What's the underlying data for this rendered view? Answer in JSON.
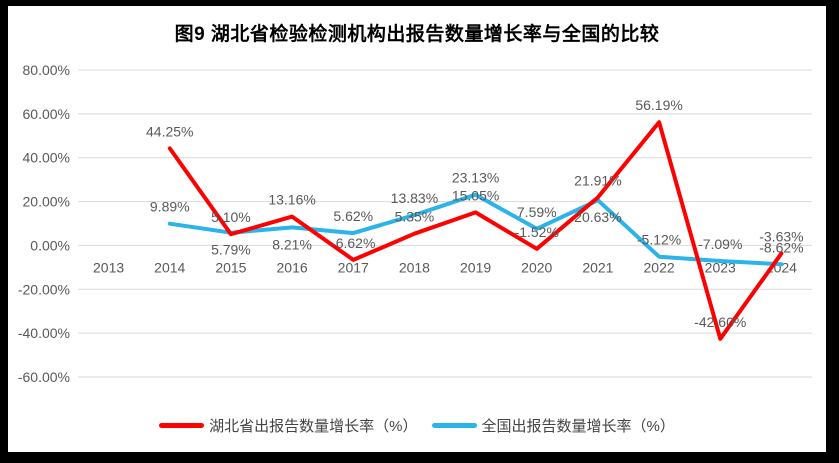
{
  "chart_data": {
    "type": "line",
    "title": "图9 湖北省检验检测机构出报告数量增长率与全国的比较",
    "categories": [
      "2013",
      "2014",
      "2015",
      "2016",
      "2017",
      "2018",
      "2019",
      "2020",
      "2021",
      "2022",
      "2023",
      "2024"
    ],
    "y_tick_labels": [
      "80.00%",
      "60.00%",
      "40.00%",
      "20.00%",
      "0.00%",
      "-20.00%",
      "-40.00%",
      "-60.00%"
    ],
    "y_tick_values": [
      80,
      60,
      40,
      20,
      0,
      -20,
      -40,
      -60
    ],
    "ylim": [
      -60,
      80
    ],
    "grid": true,
    "legend_position": "bottom",
    "series": [
      {
        "id": "hubei",
        "name": "湖北省出报告数量增长率（%）",
        "color": "#FF0000",
        "values": [
          null,
          44.25,
          5.1,
          13.16,
          -6.62,
          5.35,
          15.05,
          -1.52,
          21.91,
          56.19,
          -42.6,
          -3.63
        ],
        "labels": [
          "",
          "44.25%",
          "5.10%",
          "13.16%",
          "-6.62%",
          "5.35%",
          "15.05%",
          "-1.52%",
          "21.91%",
          "56.19%",
          "-42.60%",
          "-3.63%"
        ],
        "label_side": [
          "",
          "above",
          "above",
          "above",
          "above",
          "above",
          "above",
          "above",
          "above",
          "above",
          "above",
          "above"
        ]
      },
      {
        "id": "national",
        "name": "全国出报告数量增长率（%）",
        "color": "#2BB3EA",
        "values": [
          null,
          9.89,
          5.79,
          8.21,
          5.62,
          13.83,
          23.13,
          7.59,
          20.63,
          -5.12,
          -7.09,
          -8.62
        ],
        "labels": [
          "",
          "9.89%",
          "5.79%",
          "8.21%",
          "5.62%",
          "13.83%",
          "23.13%",
          "7.59%",
          "20.63%",
          "-5.12%",
          "-7.09%",
          "-8.62%"
        ],
        "label_side": [
          "",
          "above",
          "below",
          "below",
          "above",
          "above",
          "above",
          "above",
          "below",
          "above",
          "above",
          "above"
        ]
      }
    ],
    "colors": {
      "grid": "#D9D9D9",
      "axis_text": "#595959",
      "data_label_text": "#595959",
      "title_text": "#000000",
      "background": "#FFFFFF",
      "frame": "#000000"
    }
  }
}
